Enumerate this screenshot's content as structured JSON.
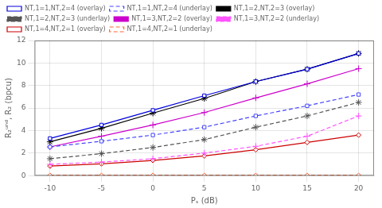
{
  "chart_data": {
    "type": "line",
    "x": [
      -10,
      -5,
      0,
      5,
      10,
      15,
      20
    ],
    "series": [
      {
        "name": "NT,1=1,NT,2=4 (overlay)",
        "color": "#0000dd",
        "marker": "square",
        "line_style": "solid",
        "values": [
          3.3,
          4.5,
          5.8,
          7.1,
          8.35,
          9.45,
          10.85
        ]
      },
      {
        "name": "NT,1=1,NT,2=4 (underlay)",
        "color": "#4444ff",
        "marker": "square",
        "line_style": "dashed",
        "values": [
          2.55,
          3.05,
          3.6,
          4.3,
          5.3,
          6.2,
          7.2
        ]
      },
      {
        "name": "NT,1=2,NT,2=3 (overlay)",
        "color": "#000000",
        "marker": "star",
        "line_style": "solid",
        "values": [
          3.0,
          4.2,
          5.55,
          6.85,
          8.35,
          9.45,
          10.85
        ]
      },
      {
        "name": "NT,1=2,NT,2=3 (underlay)",
        "color": "#555555",
        "marker": "star",
        "line_style": "dashed",
        "values": [
          1.5,
          1.95,
          2.5,
          3.2,
          4.3,
          5.3,
          6.5
        ]
      },
      {
        "name": "NT,1=3,NT,2=2 (overlay)",
        "color": "#cc00cc",
        "marker": "plus",
        "line_style": "solid",
        "values": [
          2.55,
          3.5,
          4.5,
          5.6,
          6.9,
          8.15,
          9.5
        ]
      },
      {
        "name": "NT,1=3,NT,2=2 (underlay)",
        "color": "#ff55ff",
        "marker": "plus",
        "line_style": "dashed",
        "values": [
          1.0,
          1.2,
          1.5,
          2.0,
          2.6,
          3.5,
          5.3
        ]
      },
      {
        "name": "NT,1=4,NT,2=1 (overlay)",
        "color": "#cc0000",
        "marker": "diamond",
        "line_style": "solid",
        "values": [
          0.85,
          1.05,
          1.35,
          1.75,
          2.3,
          2.95,
          3.6
        ]
      },
      {
        "name": "NT,1=4,NT,2=1 (underlay)",
        "color": "#ff6633",
        "marker": "diamond",
        "line_style": "dashed",
        "values": [
          0.02,
          0.02,
          0.02,
          0.02,
          0.02,
          0.02,
          0.02
        ]
      }
    ],
    "xlabel": "Pₛ (dB)",
    "ylabel": "R₂ᵘⁿᵈ, R₂ (bpcu)",
    "xlim": [
      -11.5,
      21.5
    ],
    "ylim": [
      0,
      12
    ],
    "xticks": [
      -10,
      -5,
      0,
      5,
      10,
      15,
      20
    ],
    "yticks": [
      0,
      2,
      4,
      6,
      8,
      10,
      12
    ],
    "grid": true,
    "legend": "upper left"
  }
}
